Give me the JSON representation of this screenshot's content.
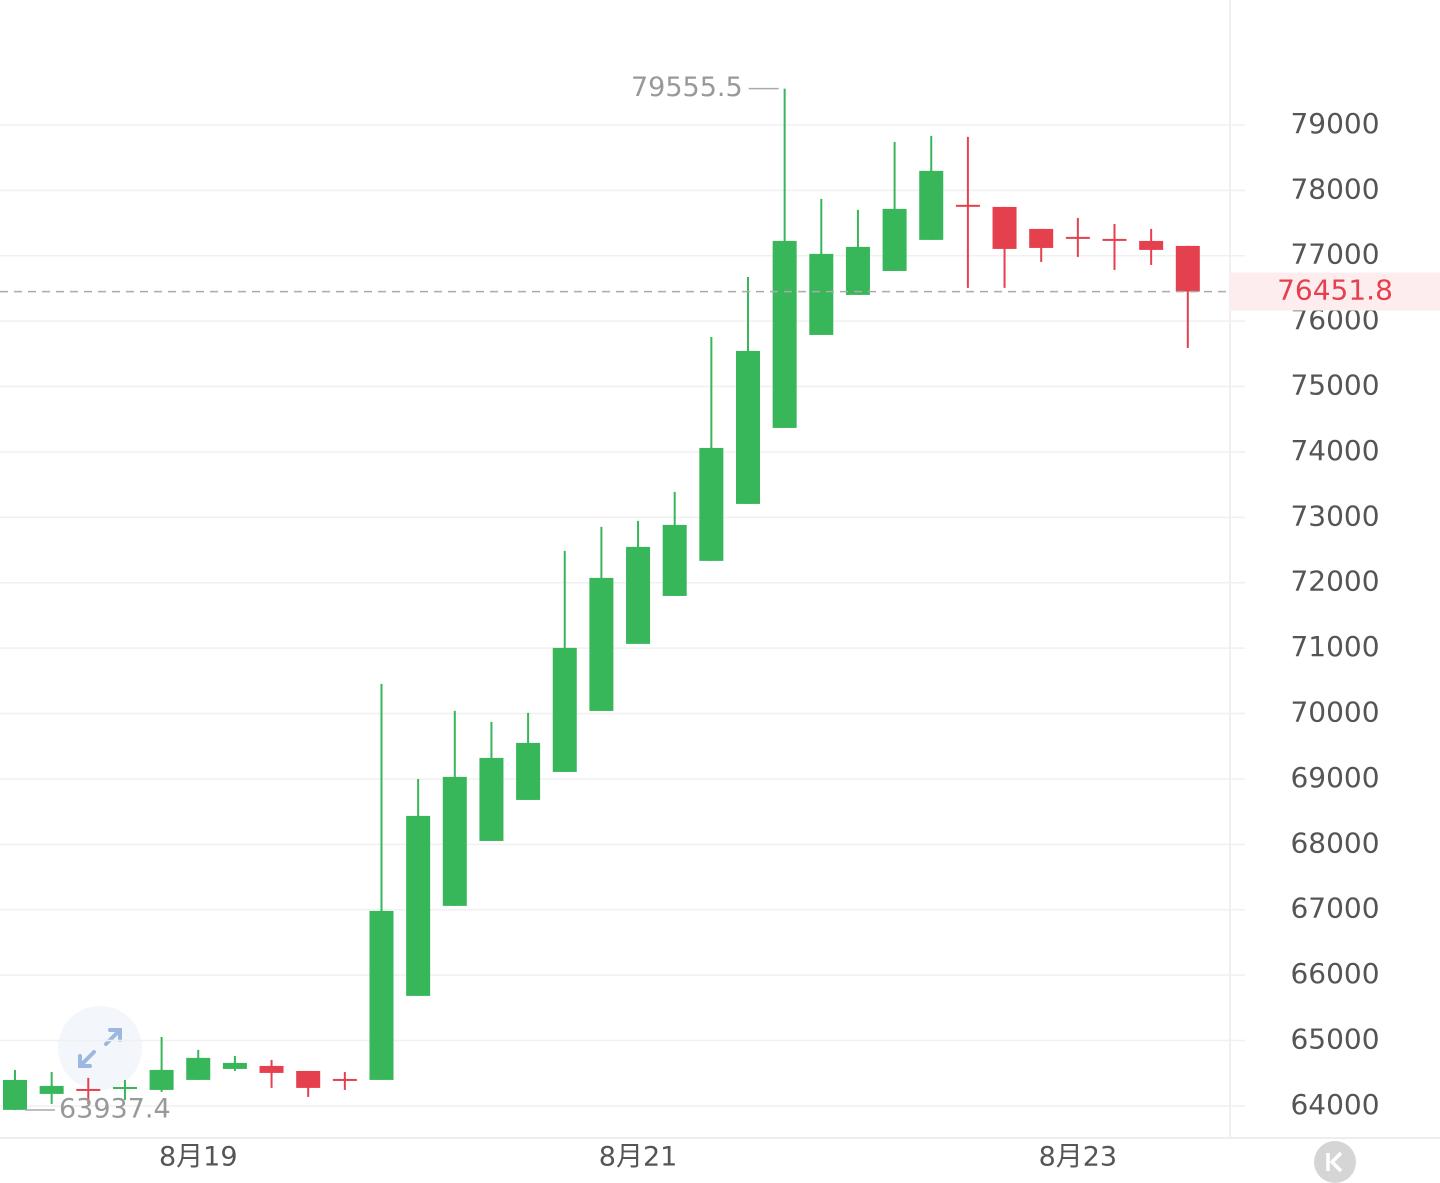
{
  "chart_data": {
    "type": "candlestick",
    "categories": [
      null,
      null,
      null,
      null,
      null,
      "8月19",
      null,
      null,
      null,
      null,
      null,
      null,
      null,
      null,
      null,
      null,
      null,
      "8月21",
      null,
      null,
      null,
      null,
      null,
      null,
      null,
      null,
      null,
      null,
      null,
      "8月23",
      null,
      null,
      null
    ],
    "open": [
      63940,
      64184,
      64260,
      64270,
      64245,
      64398,
      64566,
      64612,
      64535,
      64413,
      64398,
      65683,
      67059,
      68052,
      68679,
      69107,
      70040,
      71065,
      71798,
      72334,
      73205,
      74367,
      75789,
      76401,
      76767,
      77242,
      77778,
      77746,
      77410,
      77288,
      77257,
      77226,
      77150
    ],
    "high": [
      64551,
      64520,
      64429,
      64398,
      65055,
      64857,
      64765,
      64704,
      64535,
      64520,
      70453,
      69000,
      70040,
      69872,
      70010,
      72487,
      72854,
      72945,
      73389,
      75758,
      76675,
      79555.5,
      77869,
      77701,
      78740,
      78832,
      78817,
      77746,
      77410,
      77578,
      77486,
      77410,
      77150
    ],
    "low": [
      63937.4,
      64031,
      64031,
      64092,
      64214,
      64398,
      64535,
      64276,
      64138,
      64245,
      64398,
      65683,
      67059,
      68052,
      68679,
      69107,
      70040,
      71065,
      71798,
      72334,
      73205,
      74367,
      75789,
      76401,
      76767,
      77242,
      76508,
      76508,
      76905,
      76982,
      76783,
      76859,
      75590
    ],
    "close": [
      64398,
      64306,
      64245,
      64290,
      64551,
      64735,
      64658,
      64505,
      64276,
      64398,
      66982,
      68435,
      69031,
      69321,
      69551,
      71004,
      72074,
      72548,
      72884,
      74061,
      75544,
      77226,
      77028,
      77135,
      77716,
      78297,
      77762,
      77104,
      77119,
      77272,
      77242,
      77089,
      76451.8
    ],
    "up_color": "#37b65a",
    "down_color": "#e5404d",
    "ylim": [
      63510,
      80910
    ],
    "yticks": [
      64000,
      65000,
      66000,
      67000,
      68000,
      69000,
      70000,
      71000,
      72000,
      73000,
      74000,
      75000,
      76000,
      77000,
      78000,
      79000
    ],
    "grid": true
  }
}
